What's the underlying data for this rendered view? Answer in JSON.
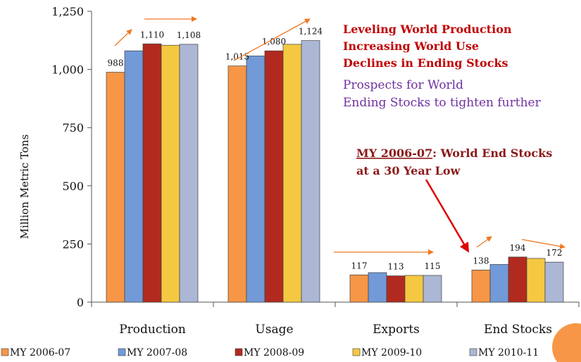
{
  "chart_data": {
    "type": "bar",
    "ylabel": "Million Metric Tons",
    "ylim": [
      0,
      1250
    ],
    "yticks": [
      "0",
      "250",
      "500",
      "750",
      "1,000",
      "1,250"
    ],
    "categories": [
      "Production",
      "Usage",
      "Exports",
      "End Stocks"
    ],
    "series": [
      {
        "name": "MY 2006-07",
        "color": "#f79646",
        "values": [
          988,
          1015,
          117,
          138
        ]
      },
      {
        "name": "MY 2007-08",
        "color": "#729ad8",
        "values": [
          1080,
          1058,
          127,
          162
        ]
      },
      {
        "name": "MY 2008-09",
        "color": "#b22a1f",
        "values": [
          1110,
          1080,
          113,
          194
        ]
      },
      {
        "name": "MY 2009-10",
        "color": "#f5c842",
        "values": [
          1104,
          1108,
          115,
          188
        ]
      },
      {
        "name": "MY 2010-11",
        "color": "#abb7d5",
        "values": [
          1108,
          1124,
          115,
          172
        ]
      }
    ],
    "data_labels": [
      {
        "category": 0,
        "series": 0,
        "text": "988"
      },
      {
        "category": 0,
        "series": 2,
        "text": "1,110"
      },
      {
        "category": 0,
        "series": 4,
        "text": "1,108"
      },
      {
        "category": 1,
        "series": 0,
        "text": "1,015"
      },
      {
        "category": 1,
        "series": 2,
        "text": "1,080"
      },
      {
        "category": 1,
        "series": 4,
        "text": "1,124"
      },
      {
        "category": 2,
        "series": 0,
        "text": "117"
      },
      {
        "category": 2,
        "series": 2,
        "text": "113"
      },
      {
        "category": 2,
        "series": 4,
        "text": "115"
      },
      {
        "category": 3,
        "series": 0,
        "text": "138"
      },
      {
        "category": 3,
        "series": 2,
        "text": "194"
      },
      {
        "category": 3,
        "series": 4,
        "text": "172"
      }
    ],
    "legend_position": "bottom",
    "annotations": {
      "headline": [
        "Leveling World Production",
        "Increasing World Use",
        "Declines in Ending Stocks"
      ],
      "subtext": [
        "Prospects for World",
        "Ending Stocks to tighten further"
      ],
      "note_underlined": "MY 2006-07",
      "note_rest": ": World End Stocks",
      "note_line2": "at a 30 Year Low"
    },
    "colors": {
      "headline": "#c00000",
      "subtext": "#7030a0",
      "note": "#8b1a1a",
      "arrow": "#f07820",
      "pointer": "#e00000",
      "decor_circle": "#f79646"
    }
  }
}
